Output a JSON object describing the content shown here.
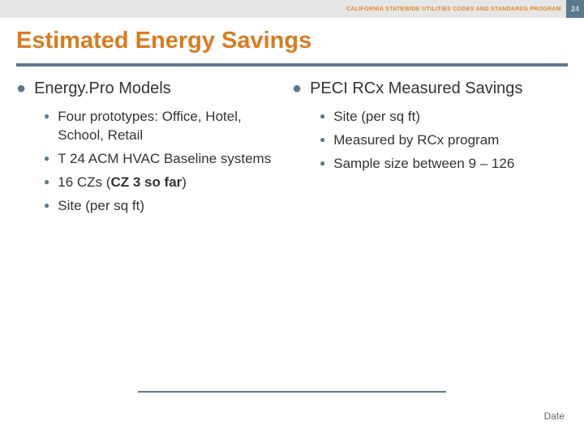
{
  "header": {
    "program_name": "CALIFORNIA STATEWIDE UTILITIES CODES AND STANDARDS PROGRAM",
    "page_number": "24"
  },
  "title": "Estimated Energy Savings",
  "colors": {
    "accent_orange": "#d97b1f",
    "accent_blue": "#5a7a8c",
    "header_bg": "#e6e6e6",
    "body_text": "#333333",
    "footer_text": "#666666",
    "background": "#ffffff"
  },
  "typography": {
    "title_fontsize": 29,
    "l1_fontsize": 20,
    "l2_fontsize": 17,
    "header_fontsize": 7,
    "pagenum_fontsize": 9
  },
  "columns": {
    "left": {
      "heading": "Energy.Pro Models",
      "items": [
        {
          "text": "Four prototypes: Office, Hotel, School, Retail"
        },
        {
          "text": "T 24 ACM HVAC Baseline systems"
        },
        {
          "text_prefix": "16 CZs (",
          "text_bold": "CZ 3 so far",
          "text_suffix": ")"
        },
        {
          "text": "Site (per sq ft)"
        }
      ]
    },
    "right": {
      "heading": "PECI RCx Measured Savings",
      "items": [
        {
          "text": "Site (per sq ft)"
        },
        {
          "text": "Measured by RCx program"
        },
        {
          "text": "Sample size between 9 – 126"
        }
      ]
    }
  },
  "footer": {
    "date_label": "Date"
  }
}
